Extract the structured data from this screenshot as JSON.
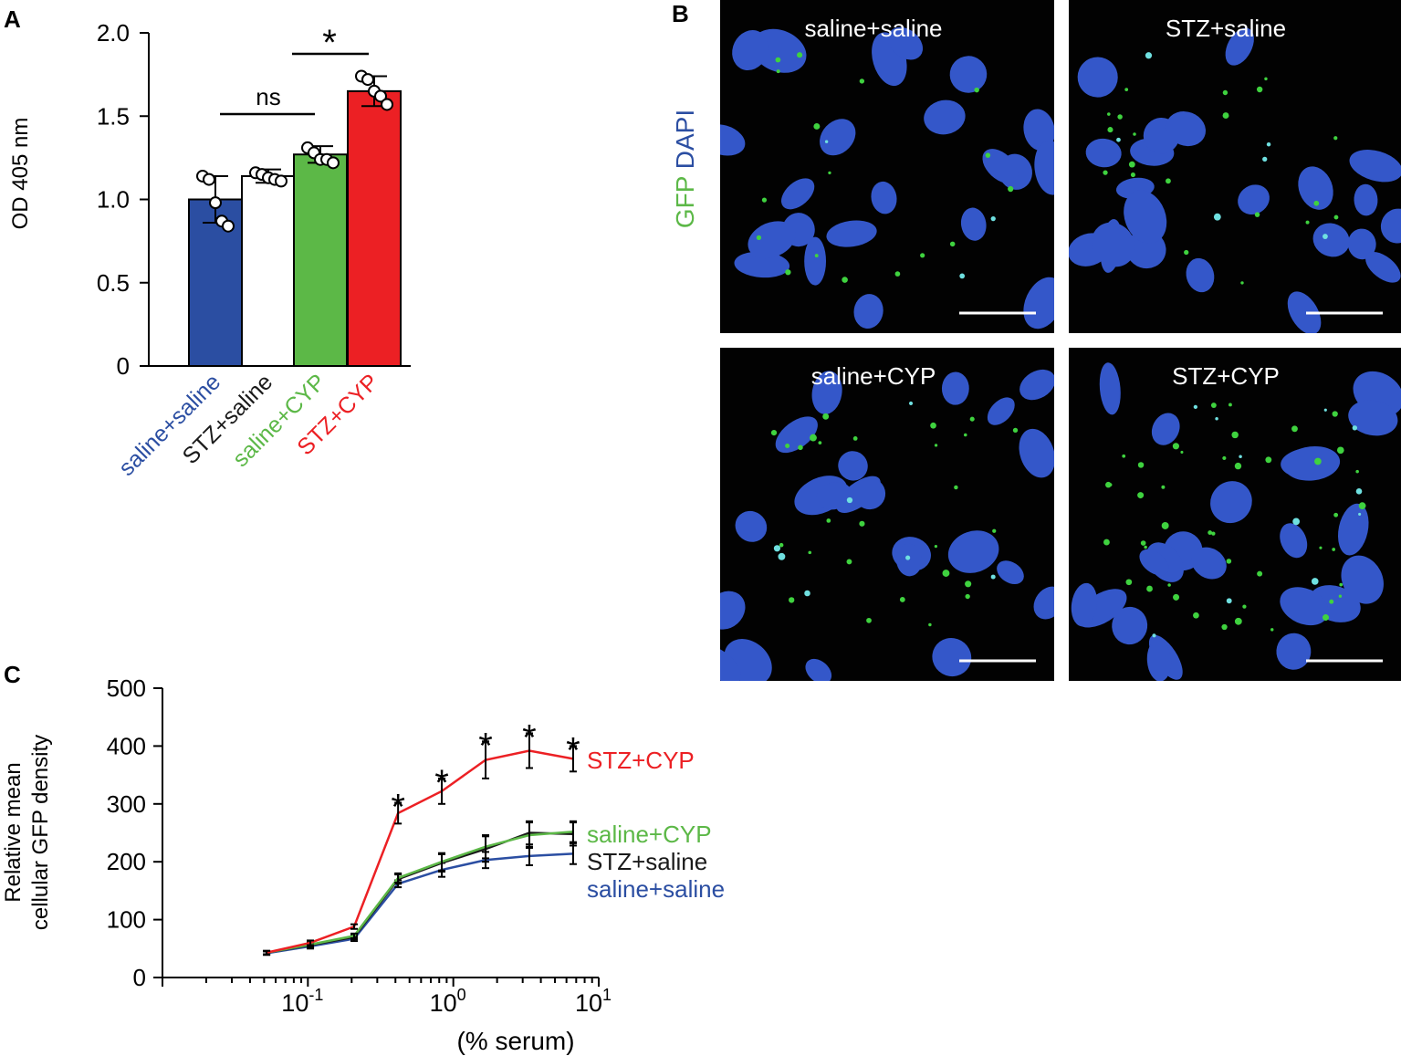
{
  "panel_a": {
    "label": "A",
    "ylabel": "OD 405 nm",
    "sig_ns": "ns",
    "sig_star": "*",
    "chart_data": {
      "type": "bar",
      "categories": [
        "saline+saline",
        "STZ+saline",
        "saline+CYP",
        "STZ+CYP"
      ],
      "values": [
        1.0,
        1.14,
        1.27,
        1.65
      ],
      "errors": [
        0.14,
        0.04,
        0.05,
        0.09
      ],
      "points": [
        [
          1.14,
          1.12,
          0.98,
          0.87,
          0.84
        ],
        [
          1.16,
          1.15,
          1.13,
          1.12,
          1.11
        ],
        [
          1.31,
          1.28,
          1.24,
          1.24,
          1.22
        ],
        [
          1.74,
          1.72,
          1.65,
          1.62,
          1.57
        ]
      ],
      "colors": [
        "#2b4ea2",
        "#ffffff",
        "#5cb847",
        "#ec2024"
      ],
      "label_colors": [
        "#2b4ea2",
        "#1a1a1a",
        "#5cb847",
        "#ec2024"
      ],
      "ylim": [
        0,
        2.0
      ],
      "yticks": [
        0,
        0.5,
        1.0,
        1.5,
        2.0
      ],
      "ytick_labels": [
        "0",
        "0.5",
        "1.0",
        "1.5",
        "2.0"
      ],
      "comparisons": [
        {
          "from": 0,
          "to": 2,
          "label": "ns"
        },
        {
          "from": 2,
          "to": 3,
          "label": "*"
        }
      ]
    }
  },
  "panel_b": {
    "label": "B",
    "stain_gfp": "GFP",
    "stain_dapi": "DAPI",
    "stain_gfp_color": "#5cb847",
    "stain_dapi_color": "#2b4ea2",
    "images": [
      {
        "title": "saline+saline"
      },
      {
        "title": "STZ+saline"
      },
      {
        "title": "saline+CYP"
      },
      {
        "title": "STZ+CYP"
      }
    ]
  },
  "panel_c": {
    "label": "C",
    "ylabel_line1": "Relative mean",
    "ylabel_line2": "cellular GFP density",
    "xlabel": "(% serum)",
    "xtick_labels": [
      {
        "base": "10",
        "exp": "-1"
      },
      {
        "base": "10",
        "exp": "0"
      },
      {
        "base": "10",
        "exp": "1"
      }
    ],
    "chart_data": {
      "type": "line",
      "x_scale": "log",
      "x": [
        0.052,
        0.104,
        0.208,
        0.417,
        0.833,
        1.667,
        3.333,
        6.667
      ],
      "xlim": [
        0.01,
        10
      ],
      "ylim": [
        0,
        500
      ],
      "yticks": [
        0,
        100,
        200,
        300,
        400,
        500
      ],
      "series": [
        {
          "name": "saline+saline",
          "color": "#2b4ea2",
          "values": [
            42,
            54,
            67,
            162,
            186,
            203,
            210,
            214
          ],
          "errors": [
            3,
            4,
            4,
            6,
            12,
            14,
            16,
            18
          ]
        },
        {
          "name": "STZ+saline",
          "color": "#1a1a1a",
          "values": [
            43,
            56,
            70,
            170,
            198,
            222,
            250,
            248
          ],
          "errors": [
            3,
            4,
            4,
            8,
            15,
            22,
            20,
            20
          ]
        },
        {
          "name": "saline+CYP",
          "color": "#5cb847",
          "values": [
            43,
            57,
            72,
            172,
            200,
            226,
            246,
            252
          ],
          "errors": [
            3,
            4,
            4,
            8,
            15,
            20,
            22,
            18
          ]
        },
        {
          "name": "STZ+CYP",
          "color": "#ec2024",
          "values": [
            43,
            60,
            88,
            284,
            322,
            376,
            392,
            378
          ],
          "errors": [
            3,
            4,
            4,
            18,
            22,
            32,
            30,
            22
          ]
        }
      ],
      "significant_indices": [
        3,
        4,
        5,
        6,
        7
      ],
      "sig_mark": "*"
    }
  }
}
